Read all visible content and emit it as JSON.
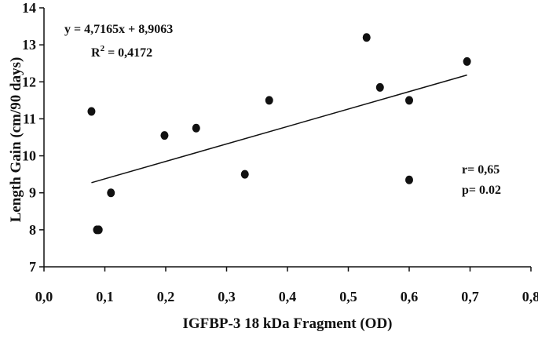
{
  "chart_data": {
    "type": "scatter",
    "xlabel": "IGFBP-3 18 kDa Fragment (OD)",
    "ylabel": "Length Gain (cm/90 days)",
    "xlim": [
      0.0,
      0.8
    ],
    "ylim": [
      7,
      14
    ],
    "x_ticks": [
      "0,0",
      "0,1",
      "0,2",
      "0,3",
      "0,4",
      "0,5",
      "0,6",
      "0,7",
      "0,8"
    ],
    "y_ticks": [
      "7",
      "8",
      "9",
      "10",
      "11",
      "12",
      "13",
      "14"
    ],
    "grid": false,
    "points": [
      {
        "x": 0.078,
        "y": 11.2
      },
      {
        "x": 0.087,
        "y": 8.0
      },
      {
        "x": 0.09,
        "y": 8.0
      },
      {
        "x": 0.11,
        "y": 9.0
      },
      {
        "x": 0.198,
        "y": 10.55
      },
      {
        "x": 0.25,
        "y": 10.75
      },
      {
        "x": 0.33,
        "y": 9.5
      },
      {
        "x": 0.37,
        "y": 11.5
      },
      {
        "x": 0.53,
        "y": 13.2
      },
      {
        "x": 0.552,
        "y": 11.85
      },
      {
        "x": 0.6,
        "y": 11.5
      },
      {
        "x": 0.6,
        "y": 9.35
      },
      {
        "x": 0.695,
        "y": 12.55
      }
    ],
    "trendline": {
      "slope": 4.7165,
      "intercept": 8.9063,
      "x_start": 0.078,
      "x_end": 0.695
    },
    "annotations": {
      "equation": "y = 4,7165x + 8,9063",
      "r2_prefix": "R",
      "r2_sup": "2",
      "r2_value": " = 0,4172",
      "r": "r= 0,65",
      "p": "p= 0.02"
    },
    "colors": {
      "points": "#111111",
      "line": "#111111",
      "axis": "#111111"
    }
  }
}
